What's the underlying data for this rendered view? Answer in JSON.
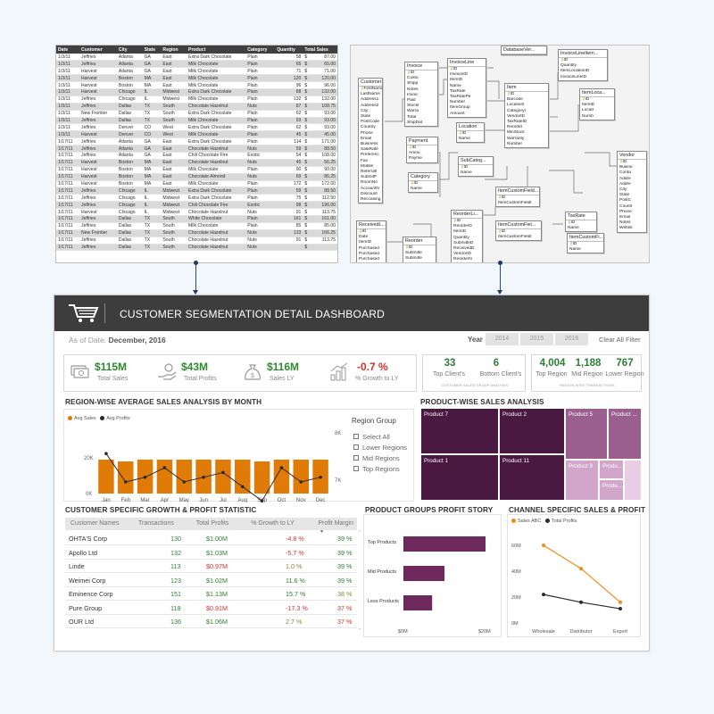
{
  "sheet": {
    "headers": [
      "Date",
      "Customer",
      "City",
      "State",
      "Region",
      "Product",
      "Category",
      "Quantity",
      "Total Sales"
    ],
    "rows": [
      [
        "1/3/11",
        "Jeffries",
        "Atlanta",
        "GA",
        "East",
        "Extra Dark Chocolate",
        "Plain",
        "58",
        "$",
        "87.00"
      ],
      [
        "1/3/11",
        "Jeffries",
        "Atlanta",
        "GA",
        "East",
        "Milk Chocolate",
        "Plain",
        "65",
        "$",
        "65.00"
      ],
      [
        "1/3/11",
        "Harvest",
        "Atlanta",
        "GA",
        "East",
        "Milk Chocolate",
        "Plain",
        "71",
        "$",
        "71.00"
      ],
      [
        "1/3/11",
        "Harvest",
        "Boston",
        "MA",
        "East",
        "Milk Chocolate",
        "Plain",
        "120",
        "$",
        "120.00"
      ],
      [
        "1/3/11",
        "Harvest",
        "Boston",
        "MA",
        "East",
        "Milk Chocolate",
        "Plain",
        "96",
        "$",
        "96.00"
      ],
      [
        "1/3/11",
        "Harvest",
        "Chicago",
        "IL",
        "Midwest",
        "Extra Dark Chocolate",
        "Plain",
        "88",
        "$",
        "132.00"
      ],
      [
        "1/3/11",
        "Jeffries",
        "Chicago",
        "IL",
        "Midwest",
        "Milk Chocolate",
        "Plain",
        "132",
        "$",
        "132.00"
      ],
      [
        "1/3/11",
        "Jeffries",
        "Dallas",
        "TX",
        "South",
        "Chocolate Hazelnut",
        "Nuts",
        "87",
        "$",
        "108.75"
      ],
      [
        "1/3/11",
        "New Frontier",
        "Dallas",
        "TX",
        "South",
        "Extra Dark Chocolate",
        "Plain",
        "62",
        "$",
        "93.00"
      ],
      [
        "1/3/11",
        "Jeffries",
        "Dallas",
        "TX",
        "South",
        "Milk Chocolate",
        "Plain",
        "93",
        "$",
        "93.00"
      ],
      [
        "1/3/11",
        "Jeffries",
        "Denver",
        "CO",
        "West",
        "Extra Dark Chocolate",
        "Plain",
        "62",
        "$",
        "93.00"
      ],
      [
        "1/3/11",
        "Harvest",
        "Denver",
        "CO",
        "West",
        "Milk Chocolate",
        "Plain",
        "45",
        "$",
        "45.00"
      ],
      [
        "1/17/11",
        "Jeffries",
        "Atlanta",
        "GA",
        "East",
        "Extra Dark Chocolate",
        "Plain",
        "114",
        "$",
        "171.00"
      ],
      [
        "1/17/11",
        "Jeffries",
        "Atlanta",
        "GA",
        "East",
        "Chocolate Hazelnut",
        "Nuts",
        "59",
        "$",
        "88.50"
      ],
      [
        "1/17/11",
        "Jeffries",
        "Atlanta",
        "GA",
        "East",
        "Chili Chocolate Fire",
        "Exotic",
        "54",
        "$",
        "108.00"
      ],
      [
        "1/17/11",
        "Harvest",
        "Boston",
        "MA",
        "East",
        "Chocolate Hazelnut",
        "Nuts",
        "45",
        "$",
        "56.25"
      ],
      [
        "1/17/11",
        "Harvest",
        "Boston",
        "MA",
        "East",
        "Milk Chocolate",
        "Plain",
        "90",
        "$",
        "90.00"
      ],
      [
        "1/17/11",
        "Harvest",
        "Boston",
        "MA",
        "East",
        "Chocolate Almond",
        "Nuts",
        "69",
        "$",
        "86.25"
      ],
      [
        "1/17/11",
        "Harvest",
        "Boston",
        "MA",
        "East",
        "Milk Chocolate",
        "Plain",
        "172",
        "$",
        "172.00"
      ],
      [
        "1/17/11",
        "Jeffries",
        "Chicago",
        "IL",
        "Midwest",
        "Extra Dark Chocolate",
        "Plain",
        "59",
        "$",
        "88.50"
      ],
      [
        "1/17/11",
        "Jeffries",
        "Chicago",
        "IL",
        "Midwest",
        "Extra Dark Chocolate",
        "Plain",
        "75",
        "$",
        "112.50"
      ],
      [
        "1/17/11",
        "Jeffries",
        "Chicago",
        "IL",
        "Midwest",
        "Chili Chocolate Fire",
        "Exotic",
        "98",
        "$",
        "196.00"
      ],
      [
        "1/17/11",
        "Harvest",
        "Chicago",
        "IL",
        "Midwest",
        "Chocolate Hazelnut",
        "Nuts",
        "91",
        "$",
        "113.75"
      ],
      [
        "1/17/11",
        "Jeffries",
        "Dallas",
        "TX",
        "South",
        "White Chocolate",
        "Plain",
        "161",
        "$",
        "161.00"
      ],
      [
        "1/17/11",
        "Jeffries",
        "Dallas",
        "TX",
        "South",
        "Milk Chocolate",
        "Plain",
        "85",
        "$",
        "85.00"
      ],
      [
        "1/17/11",
        "New Frontier",
        "Dallas",
        "TX",
        "South",
        "Chocolate Hazelnut",
        "Nuts",
        "133",
        "$",
        "166.25"
      ],
      [
        "1/17/11",
        "Jeffries",
        "Dallas",
        "TX",
        "South",
        "Chocolate Hazelnut",
        "Nuts",
        "91",
        "$",
        "113.75"
      ],
      [
        "1/17/11",
        "Jeffries",
        "Dallas",
        "TX",
        "South",
        "Chocolate Hazelnut",
        "Nuts",
        "",
        "$",
        ""
      ]
    ]
  },
  "schema": {
    "tables": [
      {
        "name": "Customer",
        "fields": [
          "FirstName",
          "LastName",
          "Address1",
          "Address2",
          "City",
          "State",
          "PostCode",
          "Country",
          "Phone",
          "Email",
          "Business",
          "SalaRate",
          "Preferenc",
          "Fax",
          "Mobile",
          "ReferralI",
          "SubmitP",
          "RoomNo",
          "AccountN",
          "Discount",
          "Reccasing"
        ]
      },
      {
        "name": "Invoice",
        "fields": [
          "ID",
          "Custo",
          "Shipp",
          "Notes",
          "Invoic",
          "Paid",
          "StockI",
          "Warra",
          "Total",
          "ShipDat"
        ]
      },
      {
        "name": "InvoiceLine",
        "fields": [
          "ID",
          "InvoiceID",
          "ItemID",
          "Name",
          "TaxRate",
          "TaxRatePe",
          "Number",
          "ItemGroup",
          "Amount"
        ]
      },
      {
        "name": "DatabaseVer...",
        "fields": []
      },
      {
        "name": "InvoiceLineItem...",
        "fields": [
          "ID",
          "Quantity",
          "ItemLocationID",
          "InvoiceLineID"
        ]
      },
      {
        "name": "Item",
        "fields": [
          "ID",
          "Barcode",
          "LocationI",
          "CategoryI",
          "VendorID",
          "TaxRateID",
          "Reorder",
          "MinStock",
          "Warranty",
          "Number"
        ]
      },
      {
        "name": "ItemLoca...",
        "fields": [
          "ID",
          "ItemID",
          "LocatI",
          "Numb"
        ]
      },
      {
        "name": "Payment",
        "fields": [
          "ID",
          "Amou",
          "Payme"
        ]
      },
      {
        "name": "Location",
        "fields": [
          "ID",
          "Name"
        ]
      },
      {
        "name": "Vendor",
        "fields": [
          "ID",
          "Busine",
          "Conta",
          "Addre",
          "Addre",
          "City",
          "State",
          "PostC",
          "Countr",
          "Phone",
          "Email",
          "Notes",
          "Websit"
        ]
      },
      {
        "name": "SubCateg...",
        "fields": [
          "ID",
          "Name"
        ]
      },
      {
        "name": "Category",
        "fields": [
          "ID",
          "Name"
        ]
      },
      {
        "name": "ReorderLi...",
        "fields": [
          "ID",
          "ReorderD",
          "ItemID",
          "Quantity",
          "SubmitteD",
          "ReceivedD",
          "VendorID",
          "ReorderN"
        ]
      },
      {
        "name": "ItemCustomField...",
        "fields": [
          "ID",
          "ItemCustomFieldI"
        ]
      },
      {
        "name": "TaxRate",
        "fields": [
          "ID",
          "Name"
        ]
      },
      {
        "name": "ItemCustomFiel...",
        "fields": [
          "ID",
          "ItemCustomFieldI"
        ]
      },
      {
        "name": "ItemCustomFi...",
        "fields": [
          "ID",
          "Name"
        ]
      },
      {
        "name": "ReceivedL...",
        "fields": [
          "ID",
          "Date",
          "ItemID",
          "Purchased",
          "Purchased",
          "Purchased",
          "Purchased"
        ]
      },
      {
        "name": "Reorder",
        "fields": [
          "ID",
          "Submitte",
          "Submitte",
          "Recei"
        ]
      }
    ]
  },
  "dashboard": {
    "title": "CUSTOMER SEGMENTATION DETAIL DASHBOARD",
    "as_of_label": "As of Date:",
    "as_of_value": "December, 2016",
    "year_label": "Year",
    "years": [
      "2014",
      "2015",
      "2016"
    ],
    "clear_filter": "Clear All Filter",
    "kpis": [
      {
        "value": "$115M",
        "label": "Total Sales",
        "color": "#2d8a2d",
        "icon": "money-bills-icon"
      },
      {
        "value": "$43M",
        "label": "Total Profits",
        "color": "#2d8a2d",
        "icon": "hand-coin-icon"
      },
      {
        "value": "$116M",
        "label": "Sales LY",
        "color": "#2d8a2d",
        "icon": "money-bag-icon"
      },
      {
        "value": "-0.7 %",
        "label": "% Growth to LY",
        "color": "#d32f2f",
        "icon": "growth-coins-icon"
      }
    ],
    "client_card": {
      "top_value": "33",
      "top_label": "Top Client's",
      "bottom_value": "6",
      "bottom_label": "Bottom Client's",
      "footer": "CUSTOMER SALES GROUP ANALYSIS"
    },
    "region_card": {
      "v1": "4,004",
      "l1": "Top Region",
      "v2": "1,188",
      "l2": "Mid Region",
      "v3": "767",
      "l3": "Lower Region",
      "footer": "REGION-WISE TRANSACTIONS"
    },
    "region_section_title": "REGION-WISE AVERAGE SALES ANALYSIS BY MONTH",
    "region_group": {
      "title": "Region Group",
      "options": [
        "Select All",
        "Lower Regions",
        "Mid Regions",
        "Top Regions"
      ]
    },
    "product_section_title": "PRODUCT-WISE SALES ANALYSIS",
    "customer_section_title": "CUSTOMER SPECIFIC GROWTH & PROFIT STATISTIC",
    "customer_table": {
      "headers": [
        "Customer Names",
        "Transactions",
        "Total Profits",
        "% Growth to LY",
        "Profit Margin"
      ],
      "rows": [
        {
          "name": "OHTA'S Corp",
          "tx": "130",
          "profit": "$1.00M",
          "growth": "-4.8 %",
          "margin": "39 %",
          "status": "neg",
          "margin_status": "pos"
        },
        {
          "name": "Apollo Ltd",
          "tx": "132",
          "profit": "$1.03M",
          "growth": "-5.7 %",
          "margin": "39 %",
          "status": "neg",
          "margin_status": "pos"
        },
        {
          "name": "Linde",
          "tx": "113",
          "profit": "$0.97M",
          "growth": "1.0 %",
          "margin": "39 %",
          "status": "flat",
          "margin_status": "pos"
        },
        {
          "name": "Weimei Corp",
          "tx": "123",
          "profit": "$1.02M",
          "growth": "11.6 %",
          "margin": "39 %",
          "status": "up",
          "margin_status": "pos"
        },
        {
          "name": "Eminence Corp",
          "tx": "151",
          "profit": "$1.13M",
          "growth": "15.7 %",
          "margin": "38 %",
          "status": "up",
          "margin_status": "flat"
        },
        {
          "name": "Pure Group",
          "tx": "118",
          "profit": "$0.91M",
          "growth": "-17.3 %",
          "margin": "37 %",
          "status": "neg",
          "margin_status": "neg"
        },
        {
          "name": "OUR Ltd",
          "tx": "136",
          "profit": "$1.06M",
          "growth": "2.7 %",
          "margin": "37 %",
          "status": "flat",
          "margin_status": "neg"
        }
      ]
    },
    "product_groups_title": "PRODUCT GROUPS PROFIT STORY",
    "channel_title": "CHANNEL SPECIFIC SALES & PROFIT"
  },
  "colors": {
    "bar_orange": "#e07b07",
    "line_dark": "#2b2b2b",
    "purple_dark": "#4a1942",
    "purple_mid": "#9b5f8f",
    "purple_light": "#d2a6cb",
    "positive": "#2e7d32",
    "negative": "#d32f2f"
  },
  "chart_data": [
    {
      "type": "bar",
      "legend": [
        "Avg Sales",
        "Avg Profits"
      ],
      "categories": [
        "Jan",
        "Feb",
        "Mar",
        "Apr",
        "May",
        "Jun",
        "Jul",
        "Aug",
        "Sep",
        "Oct",
        "Nov",
        "Dec"
      ],
      "series": [
        {
          "name": "Avg Sales",
          "values": [
            19000,
            18000,
            19000,
            19000,
            19000,
            19000,
            19000,
            19000,
            18000,
            19000,
            19000,
            19000
          ]
        },
        {
          "name": "Avg Profits",
          "values": [
            7600,
            7000,
            7100,
            7300,
            7000,
            7100,
            7200,
            6900,
            6600,
            7300,
            7000,
            7100
          ]
        }
      ],
      "y_left_ticks": [
        "0K",
        "20K"
      ],
      "y_right_ticks": [
        "7K",
        "8K"
      ]
    },
    {
      "type": "heatmap",
      "title": "PRODUCT-WISE SALES ANALYSIS",
      "cells": [
        {
          "label": "Product 7",
          "shade": "dark"
        },
        {
          "label": "Product 2",
          "shade": "dark"
        },
        {
          "label": "Product 5",
          "shade": "mid"
        },
        {
          "label": "Product ...",
          "shade": "mid"
        },
        {
          "label": "Product 1",
          "shade": "dark"
        },
        {
          "label": "Product 11",
          "shade": "dark"
        },
        {
          "label": "Product 9",
          "shade": "light"
        },
        {
          "label": "Produ...",
          "shade": "light"
        },
        {
          "label": "Produ...",
          "shade": "light"
        }
      ]
    },
    {
      "type": "bar",
      "orientation": "horizontal",
      "categories": [
        "Top Products",
        "Mid Products",
        "Less Products"
      ],
      "values": [
        20,
        10,
        7
      ],
      "x_ticks": [
        "$0M",
        "$20M"
      ]
    },
    {
      "type": "line",
      "legend": [
        "Sales ABC",
        "Total Profits"
      ],
      "categories": [
        "Wholesale",
        "Distributor",
        "Export"
      ],
      "series": [
        {
          "name": "Sales ABC",
          "values": [
            60,
            42,
            16
          ]
        },
        {
          "name": "Total Profits",
          "values": [
            22,
            16,
            11
          ]
        }
      ],
      "y_ticks": [
        "0M",
        "20M",
        "40M",
        "60M"
      ]
    }
  ]
}
